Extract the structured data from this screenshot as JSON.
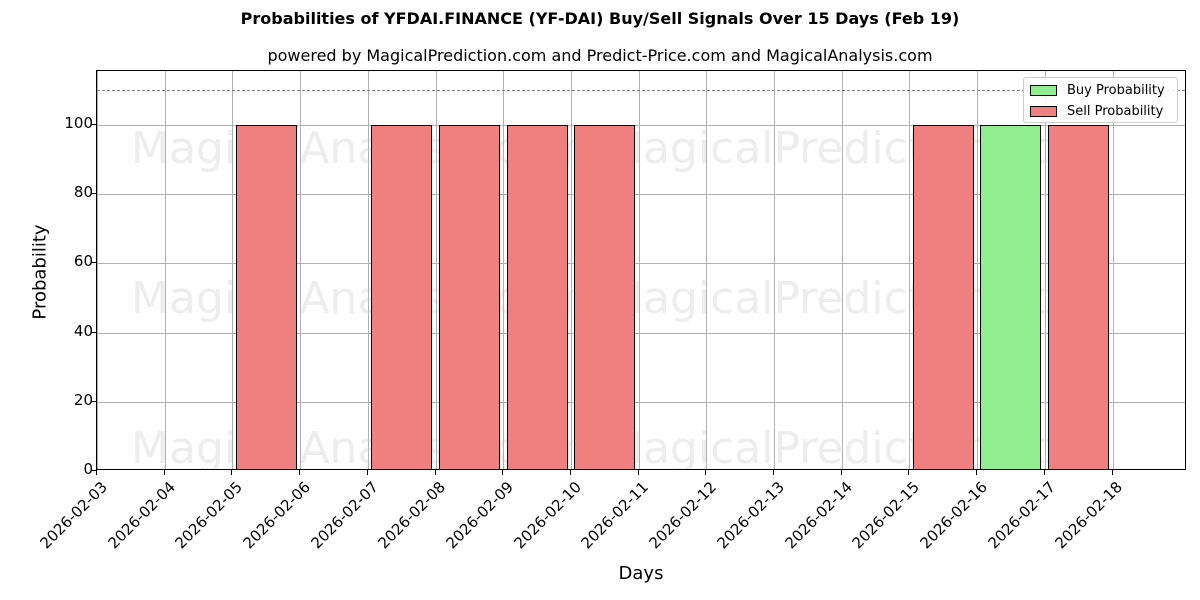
{
  "header": {
    "title": "Probabilities of YFDAI.FINANCE (YF-DAI) Buy/Sell Signals Over 15 Days (Feb 19)",
    "subtitle": "powered by MagicalPrediction.com and Predict-Price.com and MagicalAnalysis.com"
  },
  "watermarks": [
    "MagicalAnalysis.com",
    "MagicalPrediction.com"
  ],
  "colors": {
    "buy": "#90ee90",
    "sell": "#f08080",
    "grid": "#b0b0b0",
    "threshold": "#808080"
  },
  "legend": {
    "buy_label": "Buy Probability",
    "sell_label": "Sell Probability"
  },
  "axes": {
    "xlabel": "Days",
    "ylabel": "Probability"
  },
  "chart_data": {
    "type": "bar",
    "title": "Probabilities of YFDAI.FINANCE (YF-DAI) Buy/Sell Signals Over 15 Days (Feb 19)",
    "subtitle": "powered by MagicalPrediction.com and Predict-Price.com and MagicalAnalysis.com",
    "xlabel": "Days",
    "ylabel": "Probability",
    "categories": [
      "2026-02-03",
      "2026-02-04",
      "2026-02-05",
      "2026-02-06",
      "2026-02-07",
      "2026-02-08",
      "2026-02-09",
      "2026-02-10",
      "2026-02-11",
      "2026-02-12",
      "2026-02-13",
      "2026-02-14",
      "2026-02-15",
      "2026-02-16",
      "2026-02-17",
      "2026-02-18"
    ],
    "bars": [
      {
        "date": "2026-02-06",
        "signal": "Sell",
        "value": 100
      },
      {
        "date": "2026-02-08",
        "signal": "Sell",
        "value": 100
      },
      {
        "date": "2026-02-09",
        "signal": "Sell",
        "value": 100
      },
      {
        "date": "2026-02-10",
        "signal": "Sell",
        "value": 100
      },
      {
        "date": "2026-02-11",
        "signal": "Sell",
        "value": 100
      },
      {
        "date": "2026-02-16",
        "signal": "Sell",
        "value": 100
      },
      {
        "date": "2026-02-17",
        "signal": "Buy",
        "value": 100
      },
      {
        "date": "2026-02-18",
        "signal": "Sell",
        "value": 100
      }
    ],
    "series": [
      {
        "name": "Buy Probability",
        "values": [
          0,
          0,
          0,
          0,
          0,
          0,
          0,
          0,
          0,
          0,
          0,
          0,
          0,
          0,
          100,
          0
        ]
      },
      {
        "name": "Sell Probability",
        "values": [
          0,
          0,
          0,
          100,
          0,
          100,
          100,
          100,
          100,
          0,
          0,
          0,
          0,
          100,
          0,
          100
        ]
      }
    ],
    "yticks": [
      0,
      20,
      40,
      60,
      80,
      100
    ],
    "ylim": [
      0,
      115
    ],
    "threshold_line": {
      "y": 110,
      "style": "dashed",
      "color": "#808080"
    },
    "grid": true,
    "legend_position": "upper right"
  }
}
